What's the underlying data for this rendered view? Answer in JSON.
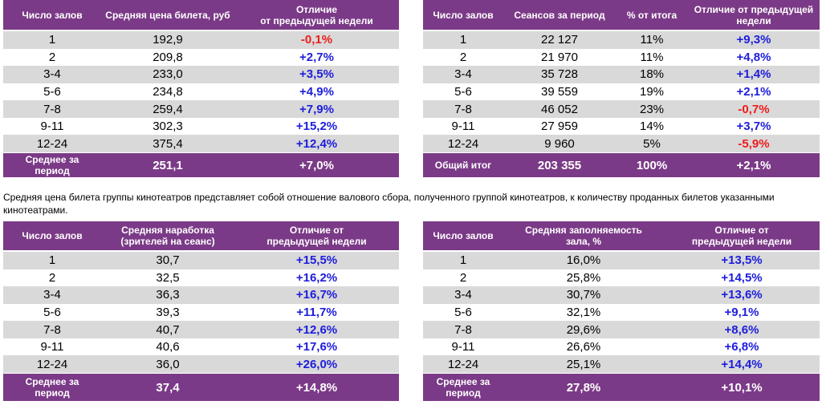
{
  "colors": {
    "header_bg": "#7b3a87",
    "header_text": "#ffffff",
    "row_alt": "#d9d9d9",
    "positive": "#1d1ddc",
    "negative": "#ee1c1c"
  },
  "table_price": {
    "headers": [
      "Число залов",
      "Средняя цена билета, руб",
      "Отличие\nот предыдущей недели"
    ],
    "rows": [
      {
        "halls": "1",
        "value": "192,9",
        "change": "-0,1%"
      },
      {
        "halls": "2",
        "value": "209,8",
        "change": "+2,7%"
      },
      {
        "halls": "3-4",
        "value": "233,0",
        "change": "+3,5%"
      },
      {
        "halls": "5-6",
        "value": "234,8",
        "change": "+4,9%"
      },
      {
        "halls": "7-8",
        "value": "259,4",
        "change": "+7,9%"
      },
      {
        "halls": "9-11",
        "value": "302,3",
        "change": "+15,2%"
      },
      {
        "halls": "12-24",
        "value": "375,4",
        "change": "+12,4%"
      }
    ],
    "footer": {
      "label": "Среднее за период",
      "value": "251,1",
      "change": "+7,0%"
    }
  },
  "table_sessions": {
    "headers": [
      "Число залов",
      "Сеансов за период",
      "% от итога",
      "Отличие от предыдущей недели"
    ],
    "rows": [
      {
        "halls": "1",
        "sessions": "22 127",
        "share": "11%",
        "change": "+9,3%"
      },
      {
        "halls": "2",
        "sessions": "21 970",
        "share": "11%",
        "change": "+4,8%"
      },
      {
        "halls": "3-4",
        "sessions": "35 728",
        "share": "18%",
        "change": "+1,4%"
      },
      {
        "halls": "5-6",
        "sessions": "39 559",
        "share": "19%",
        "change": "+2,1%"
      },
      {
        "halls": "7-8",
        "sessions": "46 052",
        "share": "23%",
        "change": "-0,7%"
      },
      {
        "halls": "9-11",
        "sessions": "27 959",
        "share": "14%",
        "change": "+3,7%"
      },
      {
        "halls": "12-24",
        "sessions": "9 960",
        "share": "5%",
        "change": "-5,9%"
      }
    ],
    "footer": {
      "label": "Общий итог",
      "sessions": "203 355",
      "share": "100%",
      "change": "+2,1%"
    }
  },
  "note": "Средняя цена билета группы кинотеатров представляет собой отношение валового сбора, полученного группой кинотеатров, к количеству проданных билетов указанными кинотеатрами.",
  "table_audience": {
    "headers": [
      "Число залов",
      "Средняя наработка\n(зрителей на сеанс)",
      "Отличие от\nпредыдущей недели"
    ],
    "rows": [
      {
        "halls": "1",
        "value": "30,7",
        "change": "+15,5%"
      },
      {
        "halls": "2",
        "value": "32,5",
        "change": "+16,2%"
      },
      {
        "halls": "3-4",
        "value": "36,3",
        "change": "+16,7%"
      },
      {
        "halls": "5-6",
        "value": "39,3",
        "change": "+11,7%"
      },
      {
        "halls": "7-8",
        "value": "40,7",
        "change": "+12,6%"
      },
      {
        "halls": "9-11",
        "value": "40,6",
        "change": "+17,6%"
      },
      {
        "halls": "12-24",
        "value": "36,0",
        "change": "+26,0%"
      }
    ],
    "footer": {
      "label": "Среднее за период",
      "value": "37,4",
      "change": "+14,8%"
    }
  },
  "table_occupancy": {
    "headers": [
      "Число залов",
      "Средняя заполняемость\nзала, %",
      "Отличие от\nпредыдущей недели"
    ],
    "rows": [
      {
        "halls": "1",
        "value": "16,0%",
        "change": "+13,5%"
      },
      {
        "halls": "2",
        "value": "25,8%",
        "change": "+14,5%"
      },
      {
        "halls": "3-4",
        "value": "30,7%",
        "change": "+13,6%"
      },
      {
        "halls": "5-6",
        "value": "32,1%",
        "change": "+9,1%"
      },
      {
        "halls": "7-8",
        "value": "29,6%",
        "change": "+8,6%"
      },
      {
        "halls": "9-11",
        "value": "26,6%",
        "change": "+6,8%"
      },
      {
        "halls": "12-24",
        "value": "25,1%",
        "change": "+14,4%"
      }
    ],
    "footer": {
      "label": "Среднее за период",
      "value": "27,8%",
      "change": "+10,1%"
    }
  }
}
